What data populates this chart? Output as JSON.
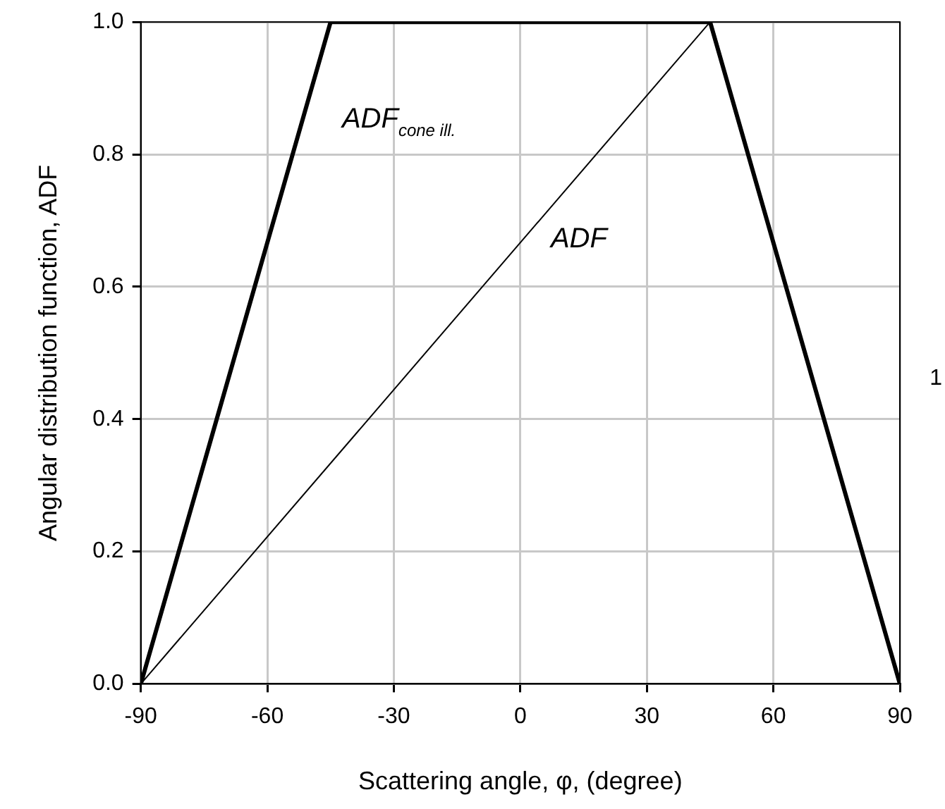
{
  "chart_data": {
    "type": "line",
    "xlabel": "Scattering angle, φ, (degree)",
    "ylabel": "Angular distribution function, ADF",
    "series": [
      {
        "name": "ADF$_{cone ill.}$",
        "color": "#000000",
        "x": [
          -90,
          -45,
          45,
          90
        ],
        "values": [
          0,
          1,
          1,
          0
        ]
      },
      {
        "name": "ADF",
        "color": "#000000",
        "x": [
          -90,
          45
        ],
        "values": [
          0,
          1
        ]
      }
    ],
    "xlim": [
      -90,
      90
    ],
    "xticks": [
      -90,
      -60,
      -30,
      0,
      30,
      60,
      90
    ],
    "ylim": [
      0,
      1
    ],
    "yticks": [
      {
        "value": 0,
        "label": "0.0"
      },
      {
        "value": 0.2,
        "label": "0.2"
      },
      {
        "value": 0.4,
        "label": "0.4"
      },
      {
        "value": 0.6,
        "label": "0.6"
      },
      {
        "value": 0.8,
        "label": "0.8"
      },
      {
        "value": 1,
        "label": "1.0"
      }
    ],
    "grid": true,
    "legend": false,
    "marker": "none",
    "line_style": "solid",
    "annotations": [
      "1"
    ]
  }
}
